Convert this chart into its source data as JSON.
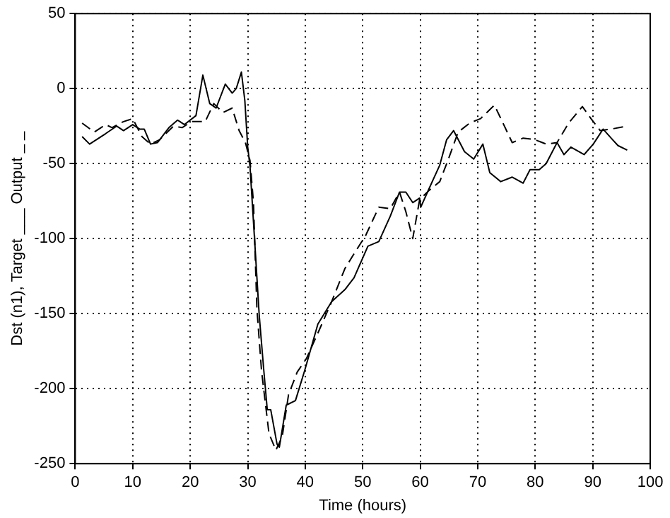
{
  "chart_data": {
    "type": "line",
    "xlabel": "Time (hours)",
    "ylabel": "Dst (n1), Target ___ Output _ _",
    "xlim": [
      0,
      100
    ],
    "xticks": [
      0,
      10,
      20,
      30,
      40,
      50,
      60,
      70,
      80,
      90,
      100
    ],
    "ylim": [
      -250,
      50
    ],
    "yticks": [
      -250,
      -200,
      -150,
      -100,
      -50,
      0,
      50
    ],
    "grid": true,
    "legend": false,
    "marker": "none",
    "series": [
      {
        "color": "#000000",
        "line_style": "solid",
        "x": [
          1.2,
          2.5,
          5.3,
          7.2,
          8.4,
          10,
          11.2,
          12,
          13.1,
          14.3,
          16.3,
          17.8,
          19,
          21,
          22.2,
          23.4,
          24.5,
          26.1,
          27.3,
          28,
          28.9,
          29.5,
          30,
          30.4,
          31.2,
          32,
          32.8,
          33.4,
          34,
          35.1,
          35.5,
          36.7,
          38.3,
          39.9,
          42.2,
          44.6,
          46.9,
          48.5,
          50.9,
          52.8,
          54.8,
          56.4,
          57.5,
          58.7,
          59.9,
          60.1,
          61.5,
          63.4,
          64.6,
          65.8,
          67.7,
          69.3,
          70.9,
          72.1,
          74,
          76,
          77.9,
          79.1,
          80.7,
          81.9,
          83.8,
          85,
          86.2,
          88.5,
          90.1,
          91.8,
          93.2,
          94.4,
          96
        ],
        "values": [
          -32,
          -37,
          -30,
          -25,
          -28,
          -24,
          -27,
          -27,
          -37,
          -36,
          -26,
          -21,
          -24,
          -18,
          9,
          -10,
          -13,
          3,
          -3,
          0,
          11,
          -8,
          -39,
          -52,
          -101,
          -151,
          -188,
          -214,
          -214,
          -237,
          -239,
          -211,
          -208,
          -188,
          -157,
          -142,
          -134,
          -126,
          -105,
          -102,
          -85,
          -69,
          -69,
          -76,
          -73,
          -79,
          -67,
          -51,
          -34,
          -28,
          -42,
          -47,
          -37,
          -56,
          -62,
          -59,
          -63,
          -54,
          -54,
          -50,
          -36,
          -44,
          -39,
          -44,
          -37,
          -27,
          -33,
          -38,
          -41
        ]
      },
      {
        "color": "#000000",
        "line_style": "dashed",
        "x": [
          1.2,
          3.3,
          5.3,
          6.4,
          8.4,
          10,
          11.6,
          13.1,
          14.7,
          17.1,
          18.6,
          20.2,
          22.6,
          24.1,
          25.7,
          27.3,
          28.5,
          29.6,
          30.4,
          31,
          31.6,
          32.4,
          33.7,
          34.9,
          36,
          37.1,
          38.6,
          40.2,
          42.2,
          44.6,
          46.9,
          48.5,
          50.5,
          52.8,
          54.8,
          56.4,
          57.5,
          58.7,
          59.9,
          61.5,
          63.4,
          65,
          66.6,
          68.6,
          70.5,
          72.9,
          74.4,
          76,
          77.9,
          79.9,
          81.9,
          83.8,
          85.8,
          88.2,
          89.7,
          91.3,
          93.2,
          96
        ],
        "values": [
          -23,
          -29,
          -24,
          -26,
          -22,
          -20,
          -32,
          -37,
          -34,
          -25,
          -26,
          -22,
          -22,
          -10,
          -16,
          -13,
          -28,
          -36,
          -48,
          -76,
          -147,
          -188,
          -230,
          -241,
          -232,
          -204,
          -189,
          -180,
          -163,
          -142,
          -120,
          -110,
          -98,
          -79,
          -80,
          -69,
          -82,
          -100,
          -74,
          -68,
          -62,
          -46,
          -29,
          -23,
          -20,
          -11,
          -23,
          -36,
          -33,
          -34,
          -37,
          -36,
          -23,
          -12,
          -20,
          -28,
          -27,
          -25
        ]
      }
    ]
  }
}
